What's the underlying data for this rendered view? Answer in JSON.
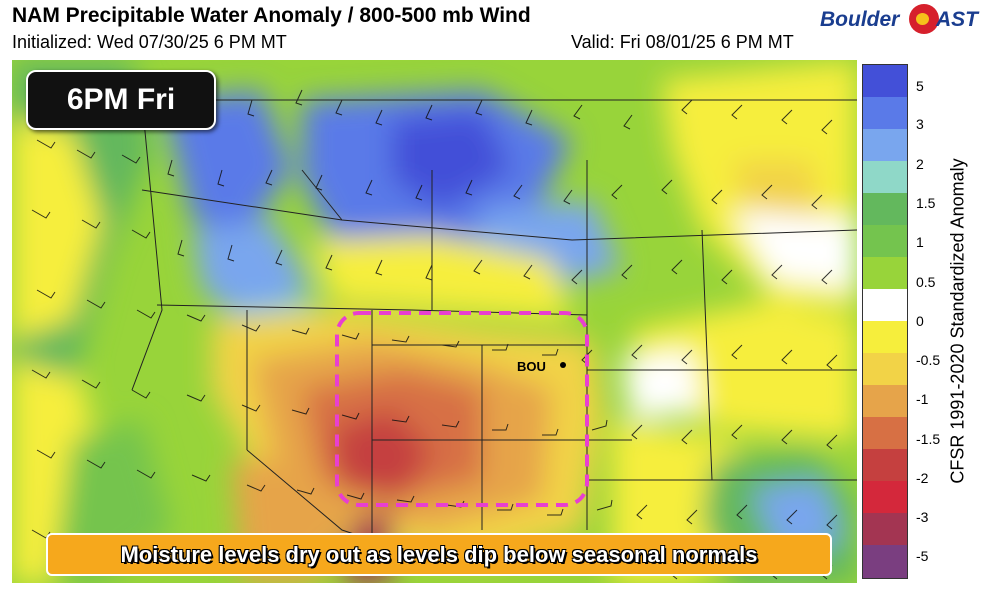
{
  "header": {
    "title": "NAM Precipitable Water Anomaly / 800-500 mb Wind",
    "initialized": "Initialized: Wed 07/30/25 6 PM MT",
    "valid": "Valid: Fri 08/01/25 6 PM MT"
  },
  "logo": {
    "part1": "Boulder",
    "part2": "AST"
  },
  "badge": {
    "label": "6PM Fri"
  },
  "caption": {
    "text": "Moisture levels dry out as levels dip below seasonal normals"
  },
  "map": {
    "station_label": "BOU",
    "highlight_color": "#e83fd0"
  },
  "colorbar": {
    "label": "CFSR 1991-2020 Standardized Anomaly",
    "ticks": [
      "5",
      "3",
      "2",
      "1.5",
      "1",
      "0.5",
      "0",
      "-0.5",
      "-1",
      "-1.5",
      "-2",
      "-3",
      "-5"
    ],
    "colors": [
      "#4350d8",
      "#5a7ae8",
      "#79a6ee",
      "#8fd8c8",
      "#63b85d",
      "#74c44e",
      "#98d43a",
      "#ffffff",
      "#f6ee3c",
      "#f2d347",
      "#e6a44a",
      "#d77044",
      "#c5403f",
      "#d4283b",
      "#a33552",
      "#7a3e80"
    ]
  }
}
